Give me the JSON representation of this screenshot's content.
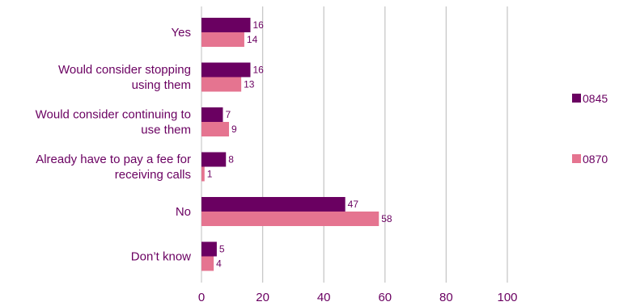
{
  "chart_data": {
    "type": "bar",
    "orientation": "horizontal",
    "categories": [
      [
        "Yes"
      ],
      [
        "Would consider stopping",
        "using them"
      ],
      [
        "Would consider continuing to",
        "use them"
      ],
      [
        "Already have to pay a fee for",
        "receiving calls"
      ],
      [
        "No"
      ],
      [
        "Don’t know"
      ]
    ],
    "series": [
      {
        "name": "0845",
        "color": "#6a0061",
        "values": [
          16,
          16,
          7,
          8,
          47,
          5
        ]
      },
      {
        "name": "0870",
        "color": "#e57490",
        "values": [
          14,
          13,
          9,
          1,
          58,
          4
        ]
      }
    ],
    "xlim": [
      0,
      100
    ],
    "xticks": [
      0,
      20,
      40,
      60,
      80,
      100
    ],
    "grid": true,
    "legend_position": "right",
    "title": "",
    "xlabel": "",
    "ylabel": "",
    "colors": {
      "text": "#6a0061",
      "grid": "#c8c8c8"
    }
  }
}
